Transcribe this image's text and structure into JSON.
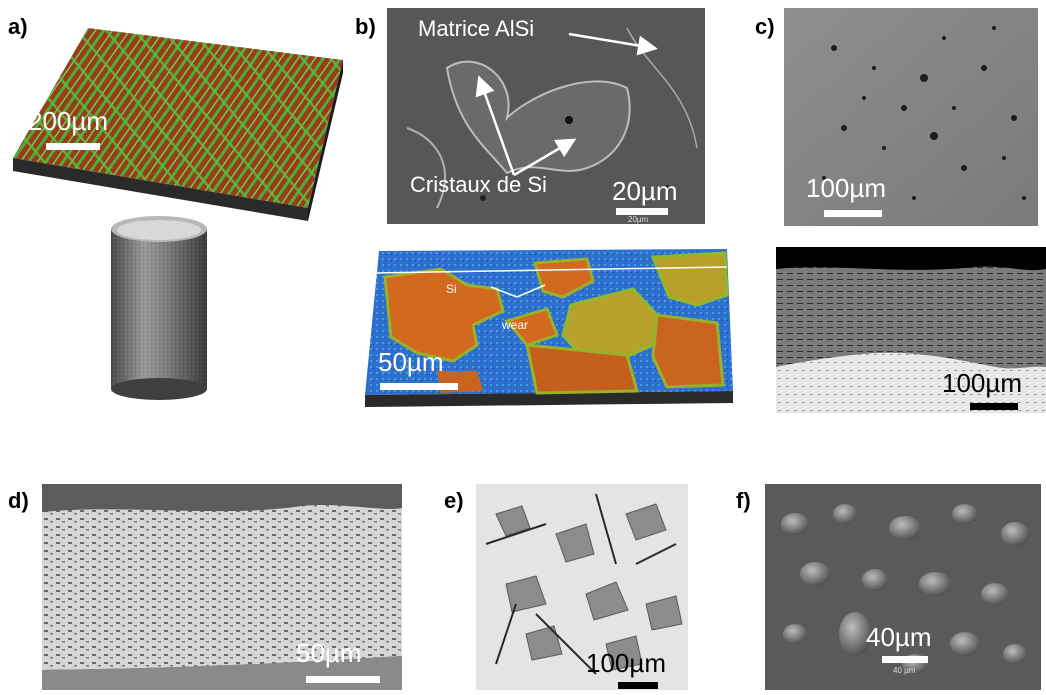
{
  "panels": {
    "a": {
      "letter": "a)",
      "scale": "200µm"
    },
    "b": {
      "letter": "b)",
      "scale": "20µm",
      "label_matrix": "Matrice AlSi",
      "label_crystals": "Cristaux de Si",
      "bar_caption": "20µm",
      "map_scale": "50µm",
      "map_label_si": "Si",
      "map_label_wear": "wear"
    },
    "c": {
      "letter": "c)",
      "scale": "100µm",
      "section_scale": "100µm"
    },
    "d": {
      "letter": "d)",
      "scale": "50µm"
    },
    "e": {
      "letter": "e)",
      "scale": "100µm"
    },
    "f": {
      "letter": "f)",
      "scale": "40µm",
      "bar_caption": "40 µm"
    }
  },
  "colors": {
    "sem_gray": "#8a8a8a",
    "topo_green": "#3cb043",
    "topo_red": "#a0401e",
    "map_blue": "#1e64c8",
    "map_orange": "#d2641e"
  }
}
